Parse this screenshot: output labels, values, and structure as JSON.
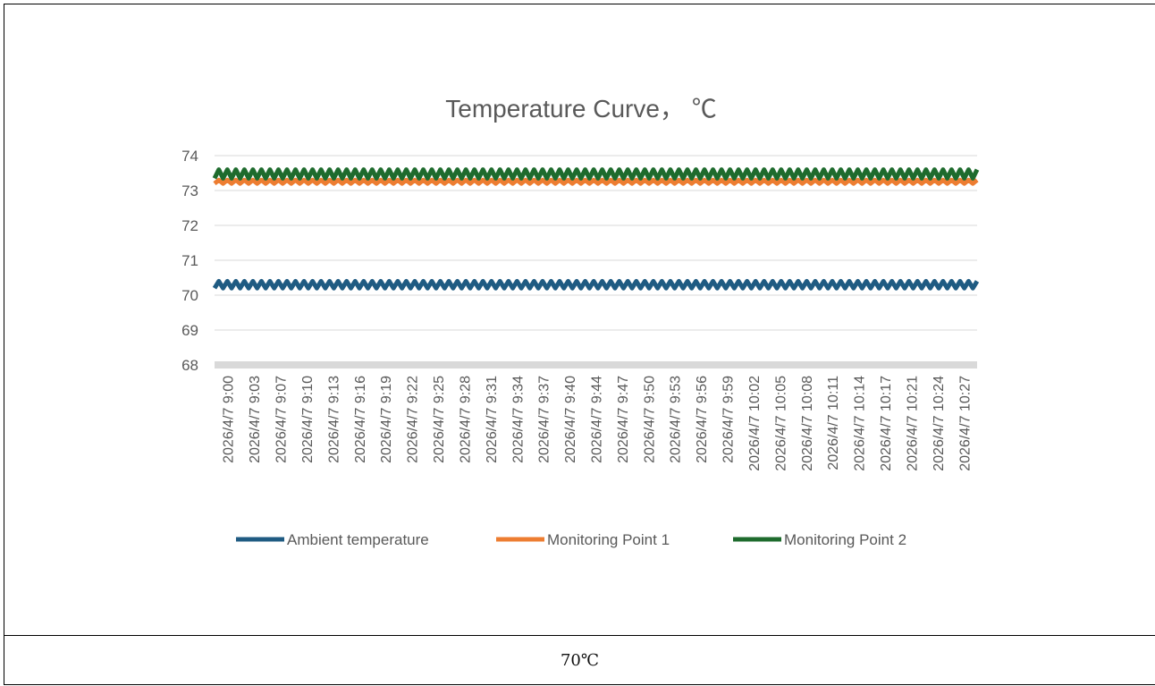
{
  "chart_data": {
    "type": "line",
    "title": "Temperature Curve， ℃",
    "xlabel": "",
    "ylabel": "",
    "ylim": [
      68,
      74
    ],
    "yticks": [
      68,
      69,
      70,
      71,
      72,
      73,
      74
    ],
    "x_start": "2026/4/7 9:00",
    "x_end": "2026/4/7 10:29",
    "x_tick_labels": [
      "2026/4/7 9:00",
      "2026/4/7 9:03",
      "2026/4/7 9:07",
      "2026/4/7 9:10",
      "2026/4/7 9:13",
      "2026/4/7 9:16",
      "2026/4/7 9:19",
      "2026/4/7 9:22",
      "2026/4/7 9:25",
      "2026/4/7 9:28",
      "2026/4/7 9:31",
      "2026/4/7 9:34",
      "2026/4/7 9:37",
      "2026/4/7 9:40",
      "2026/4/7 9:44",
      "2026/4/7 9:47",
      "2026/4/7 9:50",
      "2026/4/7 9:53",
      "2026/4/7 9:56",
      "2026/4/7 9:59",
      "2026/4/7 10:02",
      "2026/4/7 10:05",
      "2026/4/7 10:08",
      "2026/4/7 10:11",
      "2026/4/7 10:14",
      "2026/4/7 10:17",
      "2026/4/7 10:21",
      "2026/4/7 10:24",
      "2026/4/7 10:27"
    ],
    "grid": true,
    "legend_position": "bottom",
    "series": [
      {
        "name": "Ambient temperature",
        "color": "#1f5b82",
        "low": 70.2,
        "high": 70.4
      },
      {
        "name": "Monitoring Point 1",
        "color": "#ed7d31",
        "low": 73.2,
        "high": 73.3
      },
      {
        "name": "Monitoring Point 2",
        "color": "#1e6b2d",
        "low": 73.35,
        "high": 73.6
      }
    ]
  },
  "caption": "70℃"
}
